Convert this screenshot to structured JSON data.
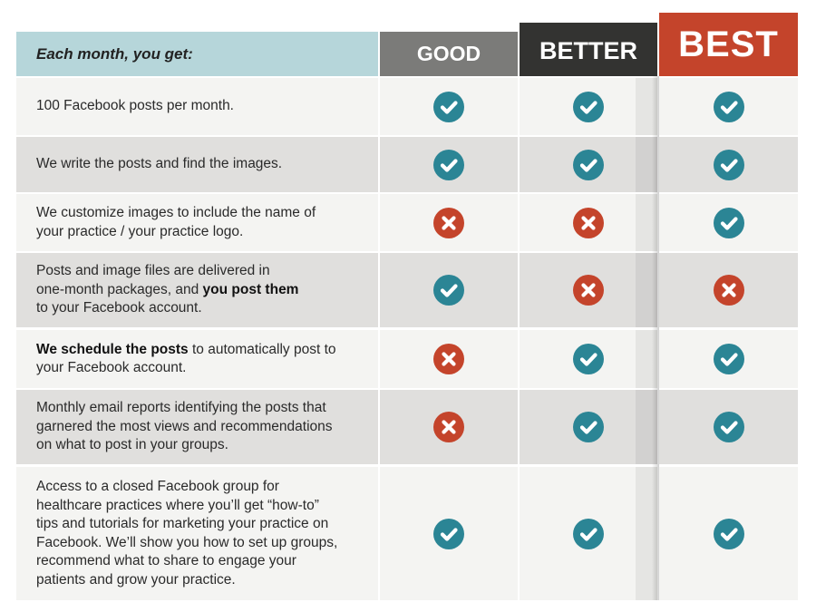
{
  "header": {
    "label": "Each month, you get:",
    "tiers": [
      "GOOD",
      "BETTER",
      "BEST"
    ]
  },
  "colors": {
    "check": "#2b8595",
    "cross": "#c4442b",
    "header_label_bg": "#b6d6da",
    "good": "#7b7b79",
    "better": "#333331",
    "best": "#c4442b"
  },
  "rows": [
    {
      "lines": [
        [
          "100 Facebook posts per month."
        ]
      ],
      "good": "check",
      "better": "check",
      "best": "check"
    },
    {
      "lines": [
        [
          "We write the posts and find the images."
        ]
      ],
      "good": "check",
      "better": "check",
      "best": "check"
    },
    {
      "lines": [
        [
          "We customize images to include the name of"
        ],
        [
          "your practice / your practice logo."
        ]
      ],
      "good": "cross",
      "better": "cross",
      "best": "check"
    },
    {
      "lines": [
        [
          "Posts and image files are delivered in"
        ],
        [
          "one-month packages, and ",
          "**you post them"
        ],
        [
          "to your Facebook account."
        ]
      ],
      "good": "check",
      "better": "cross",
      "best": "cross"
    },
    {
      "lines": [
        [
          "**We schedule the posts",
          " to automatically post to"
        ],
        [
          "your Facebook account."
        ]
      ],
      "good": "cross",
      "better": "check",
      "best": "check"
    },
    {
      "lines": [
        [
          "Monthly email reports identifying the posts that"
        ],
        [
          "garnered the most views and recommendations"
        ],
        [
          "on what to post in your groups."
        ]
      ],
      "good": "cross",
      "better": "check",
      "best": "check"
    },
    {
      "lines": [
        [
          "Access to a closed Facebook group for"
        ],
        [
          "healthcare practices where you’ll get “how-to”"
        ],
        [
          "tips and tutorials for marketing your practice on"
        ],
        [
          "Facebook. We’ll show you how to set up groups,"
        ],
        [
          "recommend what to share to engage your"
        ],
        [
          "patients and grow your practice."
        ]
      ],
      "good": "check",
      "better": "check",
      "best": "check"
    }
  ]
}
